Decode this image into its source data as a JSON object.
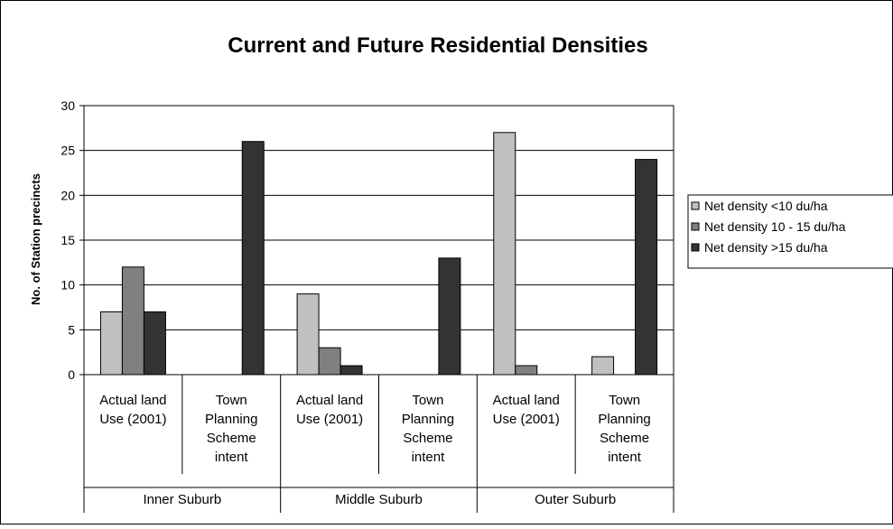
{
  "chart_data": {
    "type": "bar",
    "title": "Current and Future Residential Densities",
    "ylabel": "No. of Station precincts",
    "xlabel": "",
    "ylim": [
      0,
      30
    ],
    "yticks": [
      0,
      5,
      10,
      15,
      20,
      25,
      30
    ],
    "grid": true,
    "legend_position": "right",
    "groups": [
      "Inner Suburb",
      "Middle Suburb",
      "Outer Suburb"
    ],
    "categories": [
      {
        "lines": [
          "Actual land",
          "Use (2001)"
        ],
        "group": 0
      },
      {
        "lines": [
          "Town",
          "Planning",
          "Scheme",
          "intent"
        ],
        "group": 0
      },
      {
        "lines": [
          "Actual land",
          "Use (2001)"
        ],
        "group": 1
      },
      {
        "lines": [
          "Town",
          "Planning",
          "Scheme",
          "intent"
        ],
        "group": 1
      },
      {
        "lines": [
          "Actual land",
          "Use (2001)"
        ],
        "group": 2
      },
      {
        "lines": [
          "Town",
          "Planning",
          "Scheme",
          "intent"
        ],
        "group": 2
      }
    ],
    "series": [
      {
        "name": "Net density <10 du/ha",
        "color": "#c0c0c0",
        "values": [
          7,
          0,
          9,
          0,
          27,
          2
        ]
      },
      {
        "name": "Net density 10 - 15 du/ha",
        "color": "#808080",
        "values": [
          12,
          0,
          3,
          0,
          1,
          0
        ]
      },
      {
        "name": "Net density >15 du/ha",
        "color": "#333333",
        "values": [
          7,
          26,
          1,
          13,
          0,
          24
        ]
      }
    ]
  }
}
